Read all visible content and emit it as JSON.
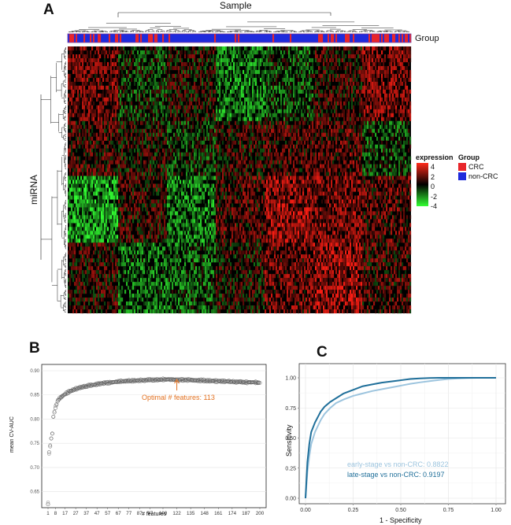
{
  "panels": {
    "a": "A",
    "b": "B",
    "c": "C"
  },
  "heatmap": {
    "column_axis_label": "Sample",
    "row_axis_label": "miRNA",
    "annotation_label": "Group",
    "expression_legend": {
      "title": "expression",
      "ticks": [
        "4",
        "2",
        "0",
        "-2",
        "-4"
      ]
    },
    "group_legend": {
      "title": "Group",
      "items": [
        {
          "label": "CRC",
          "color": "#e8262b"
        },
        {
          "label": "non-CRC",
          "color": "#1f2bdc"
        }
      ]
    },
    "colors": {
      "high": "#ff2a1a",
      "mid": "#000000",
      "low": "#33ff33"
    }
  },
  "chart_data": [
    {
      "type": "scatter",
      "xlabel": "# features",
      "ylabel": "mean CV-AUC",
      "xticks": [
        1,
        8,
        17,
        27,
        37,
        47,
        57,
        67,
        77,
        87,
        97,
        109,
        122,
        135,
        148,
        161,
        174,
        187,
        200
      ],
      "yticks": [
        0.65,
        0.7,
        0.75,
        0.8,
        0.85,
        0.9
      ],
      "xlim": [
        1,
        200
      ],
      "ylim": [
        0.63,
        0.9
      ],
      "annotation": {
        "text": "Optimal # features: 113",
        "x": 122,
        "y": 0.882,
        "color": "#e2701f"
      },
      "series": [
        {
          "x": [
            1,
            2,
            3,
            4,
            5,
            6,
            7,
            8,
            9,
            10,
            11,
            12,
            14,
            16,
            18,
            20,
            22,
            25,
            28,
            31,
            34,
            37,
            40,
            44,
            48,
            52,
            56,
            60,
            65,
            70,
            75,
            80,
            85,
            90,
            95,
            100,
            105,
            110,
            113,
            118,
            122,
            128,
            134,
            140,
            146,
            152,
            158,
            164,
            170,
            176,
            182,
            188,
            194,
            200
          ],
          "values": [
            0.626,
            0.73,
            0.745,
            0.76,
            0.77,
            0.805,
            0.815,
            0.825,
            0.83,
            0.838,
            0.84,
            0.843,
            0.847,
            0.85,
            0.853,
            0.856,
            0.858,
            0.861,
            0.863,
            0.865,
            0.867,
            0.868,
            0.87,
            0.871,
            0.873,
            0.874,
            0.875,
            0.876,
            0.877,
            0.878,
            0.879,
            0.879,
            0.88,
            0.88,
            0.881,
            0.881,
            0.881,
            0.882,
            0.882,
            0.882,
            0.881,
            0.881,
            0.881,
            0.88,
            0.88,
            0.879,
            0.879,
            0.878,
            0.878,
            0.877,
            0.877,
            0.876,
            0.876,
            0.875
          ]
        }
      ]
    },
    {
      "type": "line",
      "xlabel": "1 - Specificity",
      "ylabel": "Sensitivity",
      "xticks": [
        "0.00",
        "0.25",
        "0.50",
        "0.75",
        "1.00"
      ],
      "yticks": [
        "0.00",
        "0.25",
        "0.50",
        "0.75",
        "1.00"
      ],
      "xlim": [
        0,
        1
      ],
      "ylim": [
        0,
        1
      ],
      "grid": true,
      "series": [
        {
          "name": "early-stage vs non-CRC: 0.8822",
          "color": "#9cc4de",
          "x": [
            0,
            0.01,
            0.02,
            0.03,
            0.05,
            0.08,
            0.1,
            0.13,
            0.16,
            0.2,
            0.25,
            0.3,
            0.35,
            0.4,
            0.45,
            0.5,
            0.55,
            0.6,
            0.65,
            0.7,
            0.75,
            0.8,
            0.85,
            0.9,
            1.0
          ],
          "values": [
            0,
            0.22,
            0.35,
            0.45,
            0.55,
            0.65,
            0.7,
            0.75,
            0.79,
            0.82,
            0.85,
            0.87,
            0.89,
            0.905,
            0.92,
            0.935,
            0.95,
            0.962,
            0.972,
            0.982,
            0.99,
            0.995,
            0.998,
            1.0,
            1.0
          ]
        },
        {
          "name": "late-stage vs non-CRC: 0.9197",
          "color": "#1f6f9a",
          "x": [
            0,
            0.01,
            0.02,
            0.03,
            0.05,
            0.08,
            0.1,
            0.13,
            0.16,
            0.2,
            0.25,
            0.3,
            0.35,
            0.4,
            0.45,
            0.5,
            0.55,
            0.6,
            0.65,
            0.7,
            0.75,
            0.8,
            0.9,
            1.0
          ],
          "values": [
            0,
            0.3,
            0.45,
            0.55,
            0.63,
            0.72,
            0.76,
            0.8,
            0.83,
            0.87,
            0.9,
            0.93,
            0.945,
            0.96,
            0.97,
            0.98,
            0.99,
            0.995,
            0.998,
            1.0,
            1.0,
            1.0,
            1.0,
            1.0
          ]
        }
      ]
    }
  ]
}
